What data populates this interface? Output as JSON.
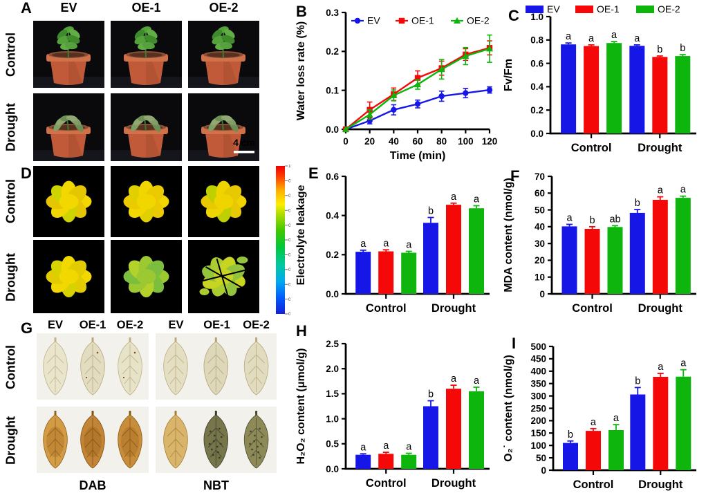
{
  "panel_letters": {
    "a": "A",
    "b": "B",
    "c": "C",
    "d": "D",
    "e": "E",
    "f": "F",
    "g": "G",
    "h": "H",
    "i": "I"
  },
  "genotype_headers": [
    "EV",
    "OE-1",
    "OE-2"
  ],
  "condition_labels": [
    "Control",
    "Drought"
  ],
  "colors": {
    "ev_blue": "#1616e6",
    "oe1_red": "#f50808",
    "oe2_green": "#0db50d"
  },
  "panel_a": {
    "scale_bar_label": "4 cm",
    "pot_color": "#c05a38",
    "background": "#0a0a0d"
  },
  "panel_d": {
    "colorbar_ticks": [
      "1",
      "0.9",
      "0.8",
      "0.7",
      "0.6",
      "0.5",
      "0.4",
      "0.3",
      "0.2",
      "0.1",
      "0"
    ],
    "cell_colors": {
      "control": [
        [
          "#f2d800",
          "#e6c600",
          "#cdd400"
        ],
        [
          "#f2d600",
          "#ecca00",
          "#e0d000"
        ],
        [
          "#f0d400",
          "#e8c800",
          "#bed000"
        ]
      ],
      "drought": [
        [
          "#f0d800",
          "#e2cc00",
          "#d8d200"
        ],
        [
          "#9cc832",
          "#7cbe3e",
          "#b4d22a"
        ],
        [
          "#c8d422",
          "#94c43c",
          "#aacc30"
        ]
      ]
    }
  },
  "panel_g": {
    "stains": [
      "DAB",
      "NBT"
    ],
    "leaf_colors": {
      "dab_control": [
        "#e9e5cc",
        "#e2ddc0",
        "#e7e3c8"
      ],
      "dab_drought": [
        "#d39b45",
        "#c28436",
        "#c88d3b"
      ],
      "nbt_control": [
        "#e4dfc2",
        "#ded8ba",
        "#e1dcbf"
      ],
      "nbt_drought": [
        "#d9b56c",
        "#77754a",
        "#8d8a57"
      ]
    }
  },
  "chart_data": [
    {
      "panel": "B",
      "type": "line",
      "xlabel": "Time (min)",
      "ylabel": "Water loss rate (%)",
      "x": [
        0,
        20,
        40,
        60,
        80,
        100,
        120
      ],
      "ylim": [
        0,
        0.3
      ],
      "yticks": [
        0,
        0.1,
        0.2,
        0.3
      ],
      "ydec": 1,
      "legend_position": "top-inside",
      "grid": false,
      "series": [
        {
          "name": "EV",
          "color": "#1616e6",
          "marker": "circle",
          "values": [
            0,
            0.022,
            0.05,
            0.065,
            0.085,
            0.093,
            0.101
          ],
          "errors": [
            0,
            0.008,
            0.013,
            0.01,
            0.013,
            0.012,
            0.008
          ]
        },
        {
          "name": "OE-1",
          "color": "#f50808",
          "marker": "square",
          "values": [
            0,
            0.05,
            0.09,
            0.132,
            0.157,
            0.192,
            0.209
          ],
          "errors": [
            0,
            0.02,
            0.016,
            0.018,
            0.018,
            0.015,
            0.018
          ]
        },
        {
          "name": "OE-2",
          "color": "#0db50d",
          "marker": "triangle",
          "values": [
            0,
            0.038,
            0.087,
            0.115,
            0.154,
            0.188,
            0.207
          ],
          "errors": [
            0,
            0.012,
            0.014,
            0.012,
            0.025,
            0.022,
            0.035
          ]
        }
      ]
    },
    {
      "panel": "C",
      "type": "bar",
      "ylabel": "Fv/Fm",
      "ylim": [
        0,
        1
      ],
      "yticks": [
        0,
        0.2,
        0.4,
        0.6,
        0.8,
        1
      ],
      "ydec": 1,
      "legend": true,
      "legend_position": "top",
      "categories": [
        "Control",
        "Drought"
      ],
      "series": [
        {
          "name": "EV",
          "color": "#1616e6",
          "values": [
            0.762,
            0.75
          ],
          "errors": [
            0.012,
            0.008
          ],
          "letters": [
            "a",
            "a"
          ]
        },
        {
          "name": "OE-1",
          "color": "#f50808",
          "values": [
            0.748,
            0.655
          ],
          "errors": [
            0.01,
            0.008
          ],
          "letters": [
            "a",
            "b"
          ]
        },
        {
          "name": "OE-2",
          "color": "#0db50d",
          "values": [
            0.774,
            0.662
          ],
          "errors": [
            0.012,
            0.012
          ],
          "letters": [
            "a",
            "b"
          ]
        }
      ]
    },
    {
      "panel": "E",
      "type": "bar",
      "ylabel": "Electrolyte leakage",
      "ylim": [
        0,
        0.6
      ],
      "yticks": [
        0,
        0.2,
        0.4,
        0.6
      ],
      "ydec": 1,
      "categories": [
        "Control",
        "Drought"
      ],
      "series": [
        {
          "name": "EV",
          "color": "#1616e6",
          "values": [
            0.215,
            0.363
          ],
          "errors": [
            0.008,
            0.027
          ],
          "letters": [
            "a",
            "b"
          ]
        },
        {
          "name": "OE-1",
          "color": "#f50808",
          "values": [
            0.217,
            0.455
          ],
          "errors": [
            0.008,
            0.008
          ],
          "letters": [
            "a",
            "a"
          ]
        },
        {
          "name": "OE-2",
          "color": "#0db50d",
          "values": [
            0.21,
            0.437
          ],
          "errors": [
            0.007,
            0.013
          ],
          "letters": [
            "a",
            "a"
          ]
        }
      ]
    },
    {
      "panel": "F",
      "type": "bar",
      "ylabel": "MDA content (nmol/g)",
      "ylim": [
        0,
        70
      ],
      "yticks": [
        0,
        10,
        20,
        30,
        40,
        50,
        60,
        70
      ],
      "ydec": 0,
      "categories": [
        "Control",
        "Drought"
      ],
      "series": [
        {
          "name": "EV",
          "color": "#1616e6",
          "values": [
            40.2,
            48.2
          ],
          "errors": [
            1.2,
            2
          ],
          "letters": [
            "a",
            "b"
          ]
        },
        {
          "name": "OE-1",
          "color": "#f50808",
          "values": [
            38.7,
            56
          ],
          "errors": [
            1.3,
            1.8
          ],
          "letters": [
            "b",
            "a"
          ]
        },
        {
          "name": "OE-2",
          "color": "#0db50d",
          "values": [
            39.8,
            57.2
          ],
          "errors": [
            0.8,
            1
          ],
          "letters": [
            "ab",
            "a"
          ]
        }
      ]
    },
    {
      "panel": "H",
      "type": "bar",
      "ylabel": "H₂O₂ content (μmol/g)",
      "ylim": [
        0,
        2.5
      ],
      "yticks": [
        0,
        0.5,
        1,
        1.5,
        2,
        2.5
      ],
      "ydec": 1,
      "categories": [
        "Control",
        "Drought"
      ],
      "series": [
        {
          "name": "EV",
          "color": "#1616e6",
          "values": [
            0.28,
            1.25
          ],
          "errors": [
            0.02,
            0.11
          ],
          "letters": [
            "a",
            "b"
          ]
        },
        {
          "name": "OE-1",
          "color": "#f50808",
          "values": [
            0.3,
            1.6
          ],
          "errors": [
            0.03,
            0.07
          ],
          "letters": [
            "a",
            "a"
          ]
        },
        {
          "name": "OE-2",
          "color": "#0db50d",
          "values": [
            0.28,
            1.55
          ],
          "errors": [
            0.03,
            0.08
          ],
          "letters": [
            "a",
            "a"
          ]
        }
      ]
    },
    {
      "panel": "I",
      "type": "bar",
      "ylabel": "O₂˙ content (nmol/g)",
      "ylim": [
        0,
        500
      ],
      "yticks": [
        0,
        50,
        100,
        150,
        200,
        250,
        300,
        350,
        400,
        450,
        500
      ],
      "ydec": 0,
      "categories": [
        "Control",
        "Drought"
      ],
      "series": [
        {
          "name": "EV",
          "color": "#1616e6",
          "values": [
            110,
            306
          ],
          "errors": [
            8,
            28
          ],
          "letters": [
            "b",
            "b"
          ]
        },
        {
          "name": "OE-1",
          "color": "#f50808",
          "values": [
            159,
            377
          ],
          "errors": [
            9,
            14
          ],
          "letters": [
            "a",
            "a"
          ]
        },
        {
          "name": "OE-2",
          "color": "#0db50d",
          "values": [
            162,
            378
          ],
          "errors": [
            22,
            28
          ],
          "letters": [
            "a",
            "a"
          ]
        }
      ]
    }
  ]
}
